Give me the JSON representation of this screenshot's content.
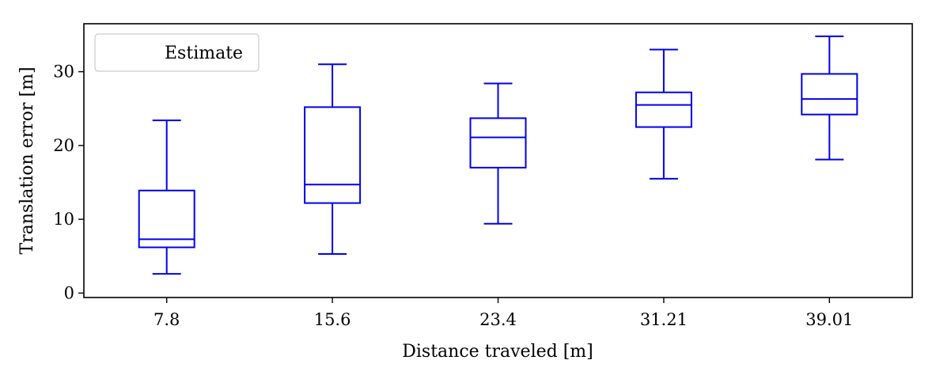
{
  "chart_data": {
    "type": "box",
    "xlabel": "Distance traveled [m]",
    "ylabel": "Translation error [m]",
    "categories": [
      "7.8",
      "15.6",
      "23.4",
      "31.21",
      "39.01"
    ],
    "ylim": [
      -0.6,
      36.5
    ],
    "yticks": [
      0,
      10,
      20,
      30
    ],
    "grid": false,
    "legend": {
      "position": "top-left",
      "entries": [
        "Estimate"
      ]
    },
    "series": [
      {
        "name": "Estimate",
        "color": "#0000ee",
        "boxes": [
          {
            "whislo": 2.6,
            "q1": 6.2,
            "med": 7.3,
            "q3": 13.9,
            "whishi": 23.4
          },
          {
            "whislo": 5.3,
            "q1": 12.2,
            "med": 14.7,
            "q3": 25.2,
            "whishi": 31.0
          },
          {
            "whislo": 9.4,
            "q1": 17.0,
            "med": 21.1,
            "q3": 23.7,
            "whishi": 28.4
          },
          {
            "whislo": 15.5,
            "q1": 22.5,
            "med": 25.5,
            "q3": 27.2,
            "whishi": 33.0
          },
          {
            "whislo": 18.1,
            "q1": 24.2,
            "med": 26.3,
            "q3": 29.7,
            "whishi": 34.8
          }
        ]
      }
    ]
  }
}
